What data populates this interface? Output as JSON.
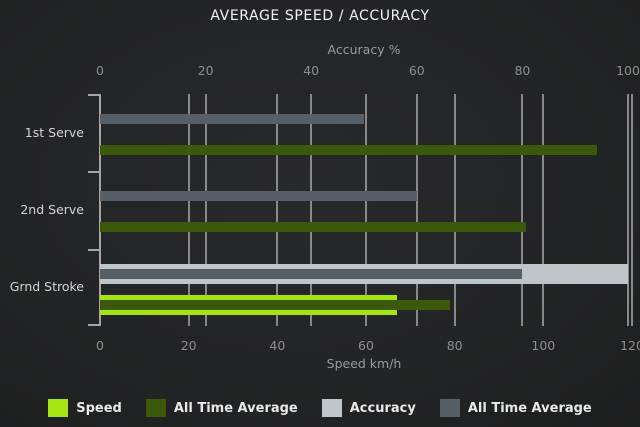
{
  "chart_data": {
    "type": "bar",
    "orientation": "horizontal",
    "title": "AVERAGE SPEED / ACCURACY",
    "categories": [
      "1st Serve",
      "2nd Serve",
      "Grnd Stroke"
    ],
    "axes": {
      "top": {
        "label": "Accuracy %",
        "min": 0,
        "max": 100,
        "ticks": [
          0,
          20,
          40,
          60,
          80,
          100
        ]
      },
      "bottom": {
        "label": "Speed km/h",
        "min": 0,
        "max": 120,
        "ticks": [
          0,
          20,
          40,
          60,
          80,
          100,
          120
        ]
      }
    },
    "series": [
      {
        "name": "Speed",
        "group": "speed",
        "role": "current",
        "axis": "bottom",
        "color": "#a4e413",
        "values": [
          null,
          null,
          67
        ]
      },
      {
        "name": "All Time Average",
        "group": "speed",
        "role": "average",
        "axis": "bottom",
        "color": "#3c590b",
        "values": [
          112,
          96,
          79
        ]
      },
      {
        "name": "Accuracy",
        "group": "accuracy",
        "role": "current",
        "axis": "top",
        "color": "#bec5c9",
        "values": [
          null,
          null,
          100
        ]
      },
      {
        "name": "All Time Average",
        "group": "accuracy",
        "role": "average",
        "axis": "top",
        "color": "#565e68",
        "values": [
          50,
          60,
          80
        ]
      }
    ],
    "legend": [
      {
        "label": "Speed",
        "color": "#a4e413"
      },
      {
        "label": "All Time Average",
        "color": "#3c590b"
      },
      {
        "label": "Accuracy",
        "color": "#bec5c9"
      },
      {
        "label": "All Time Average",
        "color": "#565e68"
      }
    ],
    "grid": true,
    "colors": {
      "background": "#232425",
      "gridline": "#9b9b9b",
      "axis": "#a5a5a5",
      "title_text": "#f2f2f2",
      "axis_text": "#9a9a9a",
      "tick_text": "#8d8d8d",
      "category_text": "#d4d4d4",
      "legend_text": "#e8e8e8"
    }
  }
}
